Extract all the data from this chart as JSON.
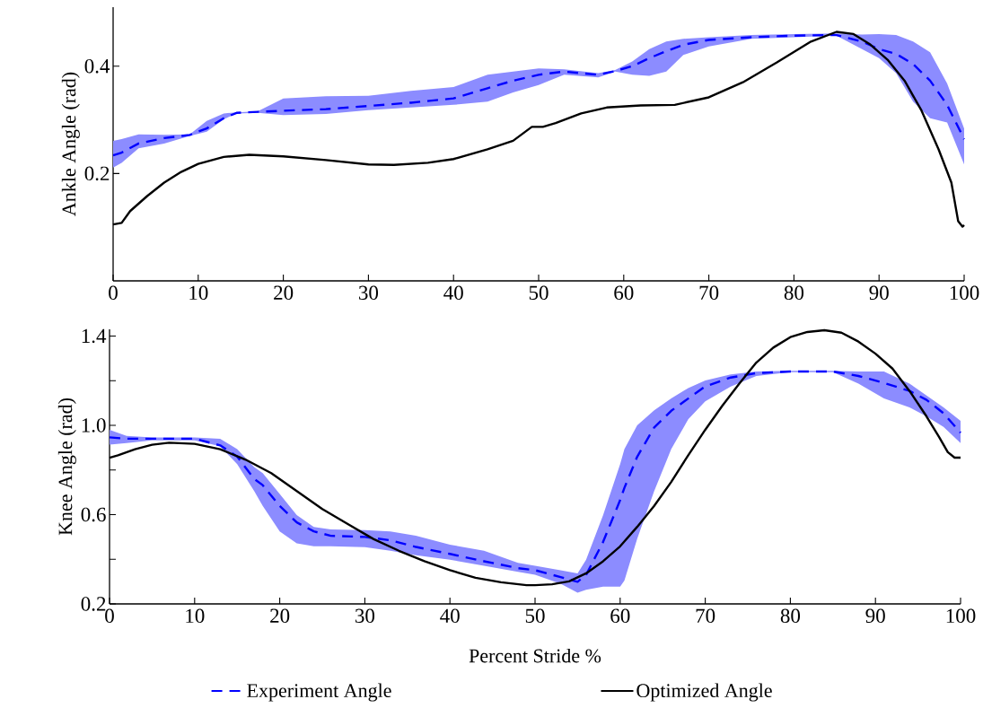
{
  "chart_data": [
    {
      "type": "line",
      "ylabel": "Ankle Angle (rad)",
      "xlim": [
        0,
        100
      ],
      "ylim": [
        0,
        0.51
      ],
      "xticks": [
        0,
        10,
        20,
        30,
        40,
        50,
        60,
        70,
        80,
        90,
        100
      ],
      "yticks": [
        0.2,
        0.4
      ],
      "series": [
        {
          "color": "#0000ff",
          "line_style": "dashed",
          "x": [
            0,
            1,
            3,
            6,
            9,
            11,
            13,
            14.5,
            17,
            20,
            25,
            30,
            35,
            40,
            44,
            47,
            50,
            53,
            57,
            59,
            61,
            63,
            65,
            67,
            70,
            75,
            80,
            85,
            88,
            90,
            92,
            94,
            96,
            98,
            100
          ],
          "values": [
            0.234,
            0.239,
            0.256,
            0.266,
            0.272,
            0.284,
            0.303,
            0.313,
            0.315,
            0.317,
            0.32,
            0.326,
            0.332,
            0.34,
            0.359,
            0.373,
            0.384,
            0.39,
            0.384,
            0.391,
            0.4,
            0.415,
            0.428,
            0.44,
            0.449,
            0.454,
            0.457,
            0.458,
            0.446,
            0.432,
            0.423,
            0.404,
            0.373,
            0.328,
            0.264
          ],
          "lower": [
            0.211,
            0.22,
            0.247,
            0.256,
            0.27,
            0.278,
            0.301,
            0.312,
            0.313,
            0.309,
            0.311,
            0.318,
            0.323,
            0.328,
            0.334,
            0.351,
            0.365,
            0.384,
            0.379,
            0.39,
            0.384,
            0.382,
            0.39,
            0.421,
            0.437,
            0.451,
            0.454,
            0.457,
            0.432,
            0.415,
            0.387,
            0.334,
            0.303,
            0.295,
            0.217
          ],
          "upper": [
            0.261,
            0.264,
            0.273,
            0.272,
            0.273,
            0.298,
            0.312,
            0.314,
            0.316,
            0.34,
            0.344,
            0.345,
            0.354,
            0.361,
            0.384,
            0.39,
            0.396,
            0.394,
            0.387,
            0.393,
            0.409,
            0.432,
            0.446,
            0.451,
            0.454,
            0.458,
            0.46,
            0.461,
            0.459,
            0.46,
            0.458,
            0.446,
            0.426,
            0.368,
            0.284
          ]
        },
        {
          "color": "#000000",
          "line_style": "solid",
          "x": [
            0,
            1,
            2,
            4,
            6,
            8,
            10,
            13,
            16,
            20,
            25,
            30,
            33,
            37,
            40,
            44,
            47,
            49.2,
            50.5,
            52,
            55,
            58,
            62,
            66,
            70,
            74,
            78,
            82,
            85,
            87,
            89,
            91,
            93,
            95,
            97,
            98.5,
            99.3,
            99.8,
            100
          ],
          "values": [
            0.105,
            0.108,
            0.13,
            0.158,
            0.183,
            0.203,
            0.218,
            0.231,
            0.235,
            0.232,
            0.225,
            0.217,
            0.216,
            0.22,
            0.227,
            0.245,
            0.261,
            0.287,
            0.287,
            0.294,
            0.312,
            0.323,
            0.327,
            0.328,
            0.342,
            0.37,
            0.407,
            0.446,
            0.464,
            0.46,
            0.44,
            0.412,
            0.373,
            0.317,
            0.245,
            0.183,
            0.111,
            0.101,
            0.104
          ]
        }
      ]
    },
    {
      "type": "line",
      "xlabel": "Percent Stride %",
      "ylabel": "Knee Angle (rad)",
      "xlim": [
        0,
        100
      ],
      "ylim": [
        0.2,
        1.43
      ],
      "xticks": [
        0,
        10,
        20,
        30,
        40,
        50,
        60,
        70,
        80,
        90,
        100
      ],
      "yticks": [
        0.2,
        {
          "value": 0.4,
          "label": null
        },
        0.6,
        {
          "value": 0.8,
          "label": null
        },
        {
          "value": 1,
          "label": "1.0"
        },
        {
          "value": 1.2,
          "label": null
        },
        1.4
      ],
      "legend": "bottom",
      "series": [
        {
          "name": "Experiment Angle",
          "color": "#0000ff",
          "line_style": "dashed",
          "x": [
            0,
            2,
            5,
            10,
            13,
            15,
            17,
            18,
            20,
            22,
            24,
            26,
            30,
            33,
            36,
            40,
            44,
            48,
            50,
            53,
            55,
            56,
            58,
            60,
            60.5,
            62,
            64,
            66,
            68,
            70,
            73,
            76,
            80,
            85,
            88,
            91,
            94,
            96,
            98,
            100
          ],
          "values": [
            0.946,
            0.94,
            0.94,
            0.94,
            0.91,
            0.86,
            0.76,
            0.732,
            0.639,
            0.565,
            0.525,
            0.505,
            0.5,
            0.485,
            0.455,
            0.424,
            0.391,
            0.36,
            0.351,
            0.32,
            0.299,
            0.33,
            0.478,
            0.665,
            0.72,
            0.859,
            0.99,
            1.065,
            1.12,
            1.174,
            1.214,
            1.234,
            1.241,
            1.241,
            1.221,
            1.19,
            1.154,
            1.114,
            1.054,
            0.967
          ],
          "lower": [
            0.913,
            0.92,
            0.933,
            0.933,
            0.906,
            0.826,
            0.705,
            0.639,
            0.525,
            0.471,
            0.458,
            0.458,
            0.454,
            0.438,
            0.418,
            0.398,
            0.371,
            0.344,
            0.331,
            0.29,
            0.25,
            0.263,
            0.277,
            0.277,
            0.304,
            0.491,
            0.705,
            0.893,
            1.027,
            1.107,
            1.174,
            1.221,
            1.238,
            1.238,
            1.187,
            1.12,
            1.08,
            1.04,
            0.993,
            0.92
          ],
          "upper": [
            0.98,
            0.953,
            0.946,
            0.946,
            0.94,
            0.893,
            0.813,
            0.786,
            0.692,
            0.598,
            0.545,
            0.534,
            0.531,
            0.525,
            0.505,
            0.465,
            0.438,
            0.384,
            0.371,
            0.351,
            0.337,
            0.398,
            0.598,
            0.826,
            0.893,
            1.0,
            1.067,
            1.12,
            1.167,
            1.201,
            1.228,
            1.241,
            1.244,
            1.244,
            1.241,
            1.241,
            1.187,
            1.134,
            1.08,
            1.02
          ]
        },
        {
          "name": "Optimized Angle",
          "color": "#000000",
          "line_style": "solid",
          "x": [
            0,
            1,
            3,
            5,
            7,
            10,
            13,
            16,
            19,
            22,
            25,
            28,
            31,
            34,
            37,
            40,
            43,
            46,
            49,
            50,
            52,
            54,
            56,
            58,
            60,
            62,
            64,
            66,
            68,
            70,
            72,
            74,
            76,
            78,
            80,
            82,
            84,
            86,
            88,
            90,
            92,
            94,
            96,
            97.5,
            98.5,
            99.3,
            100
          ],
          "values": [
            0.855,
            0.866,
            0.893,
            0.913,
            0.922,
            0.917,
            0.893,
            0.846,
            0.786,
            0.705,
            0.625,
            0.558,
            0.491,
            0.438,
            0.391,
            0.351,
            0.317,
            0.297,
            0.284,
            0.284,
            0.288,
            0.301,
            0.337,
            0.391,
            0.458,
            0.545,
            0.639,
            0.746,
            0.866,
            0.98,
            1.087,
            1.187,
            1.281,
            1.348,
            1.395,
            1.418,
            1.426,
            1.415,
            1.375,
            1.321,
            1.254,
            1.154,
            1.04,
            0.946,
            0.88,
            0.855,
            0.855
          ]
        }
      ]
    }
  ]
}
